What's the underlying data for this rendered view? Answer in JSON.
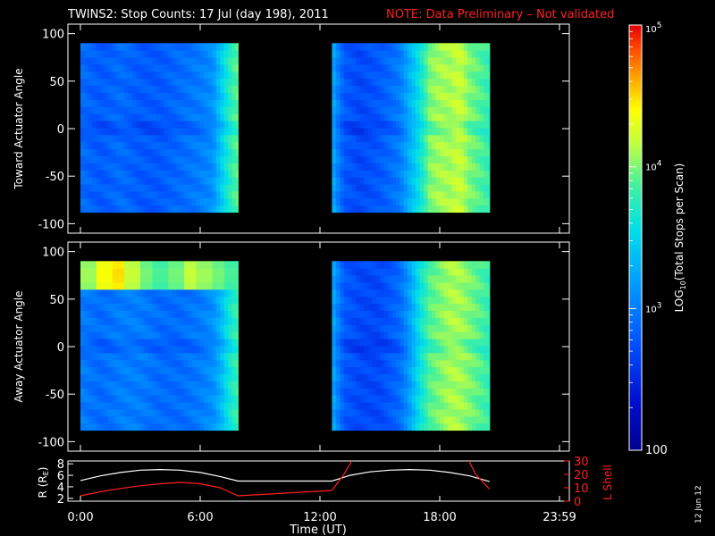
{
  "title": "TWINS2: Stop Counts: 17 Jul (day 198), 2011",
  "note": "NOTE: Data Preliminary – Not validated",
  "date_stamp": "12 Jun 12",
  "colors": {
    "background": "#000000",
    "axes": "#ffffff",
    "note": "#ff2020",
    "r_line": "#ffffff",
    "lshell_line": "#ff2020"
  },
  "colorbar": {
    "label_main": "LOG",
    "label_sub": "10",
    "label_tail": "(Total Stops per Scan)",
    "tick_labels": [
      "100",
      "10",
      "3",
      "10",
      "4",
      "10",
      "5"
    ],
    "ticks": [
      {
        "base": "100",
        "exp": ""
      },
      {
        "base": "10",
        "exp": "3"
      },
      {
        "base": "10",
        "exp": "4"
      },
      {
        "base": "10",
        "exp": "5"
      }
    ],
    "range_log": [
      2,
      5
    ]
  },
  "chart_data": [
    {
      "type": "heatmap",
      "panel": "toward",
      "ylabel": "Toward Actuator Angle",
      "ylim": [
        -110,
        110
      ],
      "yticks": [
        "100",
        "50",
        "0",
        "-50",
        "-100"
      ],
      "xlim_hours": [
        0,
        24
      ],
      "data_segments_hours": [
        [
          0.0,
          7.9
        ],
        [
          12.6,
          20.5
        ]
      ],
      "angle_range": [
        -88,
        90
      ],
      "log_counts_by_time": {
        "times_h": [
          0.0,
          1.0,
          2.0,
          3.0,
          4.0,
          5.0,
          6.0,
          6.6,
          7.0,
          7.4,
          7.8,
          12.6,
          12.7,
          13.2,
          14.0,
          15.0,
          16.0,
          16.5,
          17.0,
          17.5,
          18.0,
          18.5,
          19.0,
          19.5,
          20.0,
          20.4
        ],
        "values": [
          2.9,
          2.8,
          2.9,
          2.8,
          2.8,
          2.9,
          3.0,
          3.1,
          3.4,
          3.7,
          3.9,
          4.3,
          3.2,
          2.8,
          2.7,
          2.8,
          3.0,
          3.3,
          3.6,
          4.0,
          4.1,
          4.1,
          4.2,
          4.0,
          3.9,
          3.8
        ]
      }
    },
    {
      "type": "heatmap",
      "panel": "away",
      "ylabel": "Away Actuator Angle",
      "ylim": [
        -110,
        110
      ],
      "yticks": [
        "100",
        "50",
        "0",
        "-50",
        "-100"
      ],
      "xlim_hours": [
        0,
        24
      ],
      "data_segments_hours": [
        [
          0.0,
          7.9
        ],
        [
          12.6,
          20.5
        ]
      ],
      "angle_range": [
        -88,
        90
      ],
      "high_band_angle": [
        62,
        88
      ],
      "log_counts_by_time": {
        "times_h": [
          0.0,
          1.0,
          2.0,
          3.0,
          4.0,
          5.0,
          6.0,
          6.6,
          7.0,
          7.4,
          7.8,
          12.6,
          12.7,
          13.2,
          14.0,
          15.0,
          16.0,
          16.5,
          17.0,
          17.5,
          18.0,
          18.5,
          19.0,
          19.5,
          20.0,
          20.4
        ],
        "values": [
          3.0,
          2.9,
          3.0,
          3.0,
          2.9,
          2.9,
          3.0,
          3.1,
          3.3,
          3.6,
          3.8,
          4.3,
          3.2,
          2.8,
          2.7,
          2.7,
          2.9,
          3.2,
          3.6,
          3.9,
          4.0,
          4.1,
          4.1,
          4.0,
          3.9,
          3.8
        ]
      },
      "high_band_log": [
        4.1,
        4.4,
        4.5,
        4.2,
        4.0,
        3.9,
        4.0,
        4.2,
        4.1,
        4.0,
        3.9
      ]
    },
    {
      "type": "line",
      "panel": "ephemeris",
      "ylabel_left": "R (R",
      "ylabel_left_sub": "E",
      "ylabel_left_tail": ")",
      "ylabel_right": "L Shell",
      "xlabel": "Time (UT)",
      "xticks": [
        "0:00",
        "6:00",
        "12:00",
        "18:00",
        "23:59"
      ],
      "xtick_hours": [
        0,
        6,
        12,
        18,
        24
      ],
      "ylim_left": [
        1.5,
        8.5
      ],
      "yticks_left": [
        "8",
        "6",
        "4",
        "2"
      ],
      "ylim_right": [
        0,
        30
      ],
      "yticks_right": [
        "30",
        "20",
        "10",
        "0"
      ],
      "series": [
        {
          "axis": "left",
          "x": [
            0.0,
            1.0,
            2.0,
            3.0,
            4.0,
            5.0,
            6.0,
            7.0,
            7.9,
            12.6,
            13.5,
            14.5,
            15.5,
            16.5,
            17.5,
            18.5,
            19.5,
            20.5
          ],
          "y": [
            5.1,
            5.9,
            6.5,
            6.9,
            7.0,
            6.9,
            6.5,
            5.8,
            5.0,
            5.0,
            6.0,
            6.6,
            6.9,
            7.0,
            6.9,
            6.5,
            5.9,
            4.9
          ]
        },
        {
          "axis": "right",
          "x": [
            0.0,
            1.0,
            2.0,
            3.0,
            4.0,
            5.0,
            6.0,
            7.0,
            7.9,
            12.6,
            13.2,
            13.8,
            19.3,
            19.8,
            20.5
          ],
          "y": [
            4,
            7,
            9.5,
            11.5,
            13,
            14,
            13,
            10,
            4,
            8,
            20,
            35,
            35,
            20,
            9
          ]
        }
      ]
    }
  ]
}
